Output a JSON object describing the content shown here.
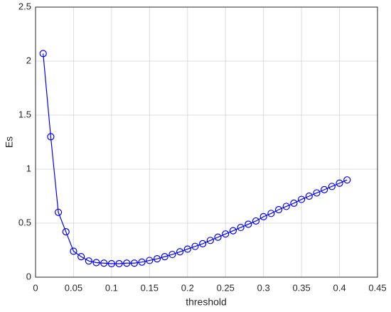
{
  "chart_data": {
    "type": "line",
    "x_label": "threshold",
    "y_label": "Es",
    "x": [
      0.01,
      0.02,
      0.03,
      0.04,
      0.05,
      0.06,
      0.07,
      0.08,
      0.09,
      0.1,
      0.11,
      0.12,
      0.13,
      0.14,
      0.15,
      0.16,
      0.17,
      0.18,
      0.19,
      0.2,
      0.21,
      0.22,
      0.23,
      0.24,
      0.25,
      0.26,
      0.27,
      0.28,
      0.29,
      0.3,
      0.31,
      0.32,
      0.33,
      0.34,
      0.35,
      0.36,
      0.37,
      0.38,
      0.39,
      0.4,
      0.41
    ],
    "series": [
      {
        "color": "#0000ff",
        "marker": "circle",
        "values": [
          2.07,
          1.3,
          0.6,
          0.42,
          0.24,
          0.19,
          0.15,
          0.135,
          0.13,
          0.125,
          0.125,
          0.13,
          0.13,
          0.14,
          0.155,
          0.17,
          0.19,
          0.21,
          0.235,
          0.26,
          0.285,
          0.31,
          0.34,
          0.37,
          0.4,
          0.43,
          0.46,
          0.49,
          0.52,
          0.56,
          0.59,
          0.625,
          0.655,
          0.685,
          0.72,
          0.75,
          0.78,
          0.81,
          0.84,
          0.87,
          0.9
        ]
      }
    ],
    "xlim": [
      0,
      0.45
    ],
    "xticks": [
      0,
      0.05,
      0.1,
      0.15,
      0.2,
      0.25,
      0.3,
      0.35,
      0.4,
      0.45
    ],
    "ylim": [
      0,
      2.5
    ],
    "yticks": [
      0,
      0.5,
      1,
      1.5,
      2,
      2.5
    ],
    "grid": true
  }
}
